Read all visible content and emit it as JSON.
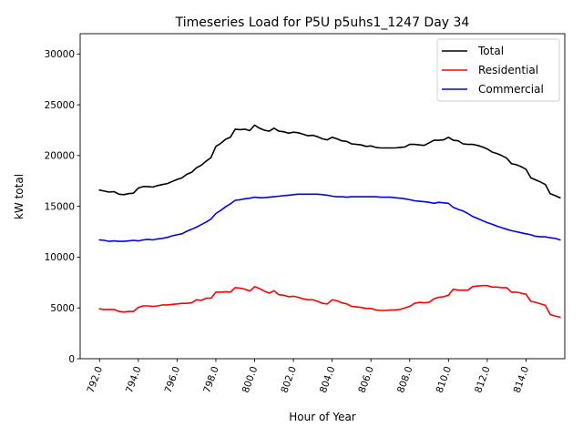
{
  "chart_data": {
    "type": "line",
    "title": "Timeseries Load for P5U p5uhs1_1247  Day 34",
    "xlabel": "Hour of Year",
    "ylabel": "kW total",
    "xlim": [
      791.0,
      816.0
    ],
    "ylim": [
      0,
      32000
    ],
    "xticks": [
      792,
      794,
      796,
      798,
      800,
      802,
      804,
      806,
      808,
      810,
      812,
      814
    ],
    "xtick_labels": [
      "792.0",
      "794.0",
      "796.0",
      "798.0",
      "800.0",
      "802.0",
      "804.0",
      "806.0",
      "808.0",
      "810.0",
      "812.0",
      "814.0"
    ],
    "yticks": [
      0,
      5000,
      10000,
      15000,
      20000,
      25000,
      30000
    ],
    "ytick_labels": [
      "0",
      "5000",
      "10000",
      "15000",
      "20000",
      "25000",
      "30000"
    ],
    "legend_position": "top-right",
    "grid": false,
    "x": [
      792.0,
      792.25,
      792.5,
      792.75,
      793.0,
      793.25,
      793.5,
      793.75,
      794.0,
      794.25,
      794.5,
      794.75,
      795.0,
      795.25,
      795.5,
      795.75,
      796.0,
      796.25,
      796.5,
      796.75,
      797.0,
      797.25,
      797.5,
      797.75,
      798.0,
      798.25,
      798.5,
      798.75,
      799.0,
      799.25,
      799.5,
      799.75,
      800.0,
      800.25,
      800.5,
      800.75,
      801.0,
      801.25,
      801.5,
      801.75,
      802.0,
      802.25,
      802.5,
      802.75,
      803.0,
      803.25,
      803.5,
      803.75,
      804.0,
      804.25,
      804.5,
      804.75,
      805.0,
      805.25,
      805.5,
      805.75,
      806.0,
      806.25,
      806.5,
      806.75,
      807.0,
      807.25,
      807.5,
      807.75,
      808.0,
      808.25,
      808.5,
      808.75,
      809.0,
      809.25,
      809.5,
      809.75,
      810.0,
      810.25,
      810.5,
      810.75,
      811.0,
      811.25,
      811.5,
      811.75,
      812.0,
      812.25,
      812.5,
      812.75,
      813.0,
      813.25,
      813.5,
      813.75,
      814.0,
      814.25,
      814.5,
      814.75,
      815.0,
      815.25,
      815.5,
      815.75
    ],
    "series": [
      {
        "name": "Total",
        "color": "#000000",
        "values": [
          16600,
          16500,
          16400,
          16450,
          16200,
          16150,
          16250,
          16300,
          16800,
          16950,
          16950,
          16900,
          17050,
          17150,
          17250,
          17450,
          17650,
          17800,
          18150,
          18350,
          18800,
          19050,
          19450,
          19800,
          20900,
          21200,
          21600,
          21800,
          22600,
          22550,
          22600,
          22450,
          23000,
          22700,
          22500,
          22400,
          22700,
          22400,
          22350,
          22200,
          22300,
          22250,
          22100,
          21950,
          22000,
          21850,
          21650,
          21550,
          21800,
          21650,
          21450,
          21400,
          21150,
          21100,
          21050,
          20900,
          20950,
          20800,
          20750,
          20750,
          20750,
          20750,
          20800,
          20850,
          21100,
          21100,
          21050,
          21000,
          21250,
          21500,
          21500,
          21550,
          21800,
          21500,
          21450,
          21150,
          21100,
          21100,
          21000,
          20850,
          20650,
          20350,
          20200,
          20000,
          19750,
          19200,
          19100,
          18900,
          18650,
          17800,
          17600,
          17400,
          17150,
          16250,
          16050,
          15850
        ]
      },
      {
        "name": "Residential",
        "color": "#ff0000",
        "values": [
          4900,
          4850,
          4850,
          4850,
          4650,
          4600,
          4650,
          4650,
          5050,
          5200,
          5200,
          5150,
          5200,
          5300,
          5300,
          5350,
          5400,
          5450,
          5450,
          5500,
          5800,
          5750,
          5950,
          5950,
          6550,
          6550,
          6600,
          6550,
          7000,
          6950,
          6850,
          6650,
          7100,
          6900,
          6650,
          6450,
          6700,
          6300,
          6250,
          6100,
          6150,
          6050,
          5900,
          5800,
          5800,
          5650,
          5450,
          5400,
          5800,
          5700,
          5500,
          5400,
          5150,
          5100,
          5050,
          4950,
          4950,
          4800,
          4750,
          4750,
          4800,
          4800,
          4850,
          5000,
          5150,
          5450,
          5550,
          5500,
          5550,
          5900,
          6050,
          6100,
          6250,
          6850,
          6750,
          6750,
          6750,
          7100,
          7150,
          7200,
          7200,
          7050,
          7050,
          7000,
          7000,
          6550,
          6550,
          6450,
          6350,
          5650,
          5550,
          5400,
          5250,
          4350,
          4200,
          4100
        ]
      },
      {
        "name": "Commercial",
        "color": "#0000ff",
        "values": [
          11700,
          11650,
          11550,
          11600,
          11550,
          11550,
          11600,
          11650,
          11600,
          11700,
          11750,
          11700,
          11800,
          11850,
          11950,
          12100,
          12200,
          12300,
          12550,
          12750,
          12950,
          13200,
          13450,
          13750,
          14300,
          14600,
          14950,
          15250,
          15600,
          15650,
          15750,
          15800,
          15900,
          15850,
          15850,
          15900,
          15950,
          16000,
          16050,
          16100,
          16150,
          16200,
          16200,
          16200,
          16200,
          16200,
          16150,
          16100,
          16000,
          15950,
          15950,
          15900,
          15950,
          15950,
          15950,
          15950,
          15950,
          15950,
          15900,
          15900,
          15900,
          15850,
          15800,
          15750,
          15650,
          15550,
          15500,
          15450,
          15400,
          15300,
          15400,
          15350,
          15300,
          14900,
          14700,
          14550,
          14300,
          14000,
          13800,
          13600,
          13400,
          13250,
          13050,
          12900,
          12750,
          12600,
          12500,
          12400,
          12300,
          12200,
          12050,
          12000,
          12000,
          11900,
          11850,
          11700
        ]
      }
    ]
  }
}
